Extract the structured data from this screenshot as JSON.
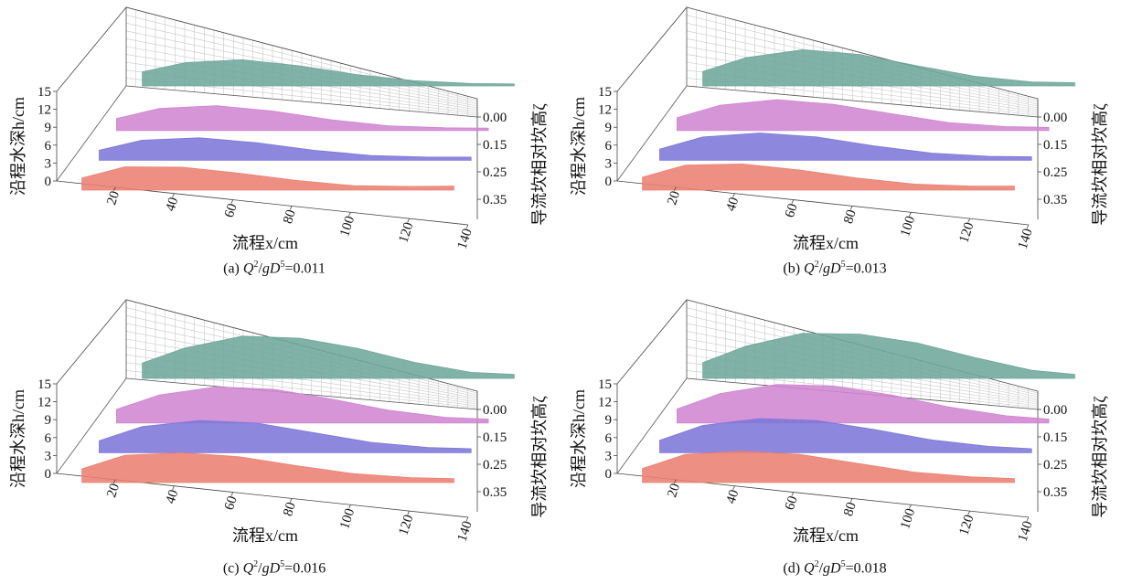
{
  "figure": {
    "axis_labels": {
      "x": "流程x/cm",
      "y": "沿程水深h/cm",
      "z": "导流坎相对坎高ζ"
    },
    "x_ticks": [
      "20",
      "40",
      "60",
      "80",
      "100",
      "120",
      "140"
    ],
    "y_ticks": [
      "0",
      "3",
      "6",
      "9",
      "12",
      "15"
    ],
    "z_ticks": [
      "0.00",
      "0.15",
      "0.25",
      "0.35"
    ],
    "series_colors": [
      "#6fa79b",
      "#cf86d2",
      "#7d76d8",
      "#ea8172"
    ]
  },
  "chart_data": [
    {
      "type": "area",
      "caption_prefix": "(a) ",
      "caption_value": "0.011",
      "zeta": [
        0.0,
        0.15,
        0.25,
        0.35
      ],
      "x": [
        5,
        20,
        40,
        60,
        80,
        100,
        120,
        135
      ],
      "series": [
        {
          "values": [
            3.5,
            5.8,
            6.5,
            5.0,
            2.8,
            1.3,
            0.6,
            0.5
          ]
        },
        {
          "values": [
            3.0,
            5.5,
            6.2,
            4.8,
            2.7,
            1.2,
            0.7,
            0.6
          ]
        },
        {
          "values": [
            2.5,
            5.0,
            5.6,
            4.4,
            2.5,
            1.2,
            0.8,
            0.8
          ]
        },
        {
          "values": [
            3.0,
            5.8,
            5.7,
            4.2,
            2.4,
            1.1,
            0.9,
            1.0
          ]
        }
      ],
      "xlim": [
        0,
        140
      ],
      "ylim": [
        0,
        15
      ]
    },
    {
      "type": "area",
      "caption_prefix": "(b) ",
      "caption_value": "0.013",
      "zeta": [
        0.0,
        0.15,
        0.25,
        0.35
      ],
      "x": [
        5,
        20,
        40,
        60,
        80,
        100,
        120,
        135
      ],
      "series": [
        {
          "values": [
            3.6,
            7.0,
            9.0,
            7.8,
            5.0,
            2.4,
            1.0,
            0.8
          ]
        },
        {
          "values": [
            3.2,
            6.3,
            7.7,
            6.5,
            4.2,
            2.0,
            1.0,
            0.8
          ]
        },
        {
          "values": [
            2.8,
            5.8,
            6.8,
            5.8,
            3.6,
            1.8,
            1.0,
            0.9
          ]
        },
        {
          "values": [
            3.2,
            6.2,
            6.5,
            5.0,
            3.0,
            1.5,
            1.0,
            1.0
          ]
        }
      ],
      "xlim": [
        0,
        140
      ],
      "ylim": [
        0,
        15
      ]
    },
    {
      "type": "area",
      "caption_prefix": "(c) ",
      "caption_value": "0.016",
      "zeta": [
        0.0,
        0.15,
        0.25,
        0.35
      ],
      "x": [
        5,
        20,
        40,
        60,
        80,
        100,
        120,
        135
      ],
      "series": [
        {
          "values": [
            3.8,
            7.6,
            10.5,
            10.0,
            7.5,
            4.0,
            1.5,
            1.0
          ]
        },
        {
          "values": [
            3.4,
            7.0,
            9.0,
            8.4,
            6.0,
            3.2,
            1.4,
            1.0
          ]
        },
        {
          "values": [
            3.0,
            6.5,
            8.0,
            7.4,
            5.0,
            2.6,
            1.3,
            1.0
          ]
        },
        {
          "values": [
            3.4,
            6.8,
            7.4,
            6.4,
            4.2,
            2.2,
            1.2,
            1.0
          ]
        }
      ],
      "xlim": [
        0,
        140
      ],
      "ylim": [
        0,
        15
      ]
    },
    {
      "type": "area",
      "caption_prefix": "(d) ",
      "caption_value": "0.018",
      "zeta": [
        0.0,
        0.15,
        0.25,
        0.35
      ],
      "x": [
        5,
        20,
        40,
        60,
        80,
        100,
        120,
        135
      ],
      "series": [
        {
          "values": [
            3.9,
            8.0,
            11.2,
            11.0,
            8.8,
            5.2,
            2.0,
            1.0
          ]
        },
        {
          "values": [
            3.5,
            7.3,
            9.6,
            9.2,
            7.0,
            4.0,
            1.8,
            1.0
          ]
        },
        {
          "values": [
            3.1,
            6.8,
            8.5,
            8.0,
            5.8,
            3.2,
            1.6,
            1.0
          ]
        },
        {
          "values": [
            3.5,
            7.0,
            7.8,
            7.0,
            4.8,
            2.6,
            1.4,
            1.0
          ]
        }
      ],
      "xlim": [
        0,
        140
      ],
      "ylim": [
        0,
        15
      ]
    }
  ]
}
